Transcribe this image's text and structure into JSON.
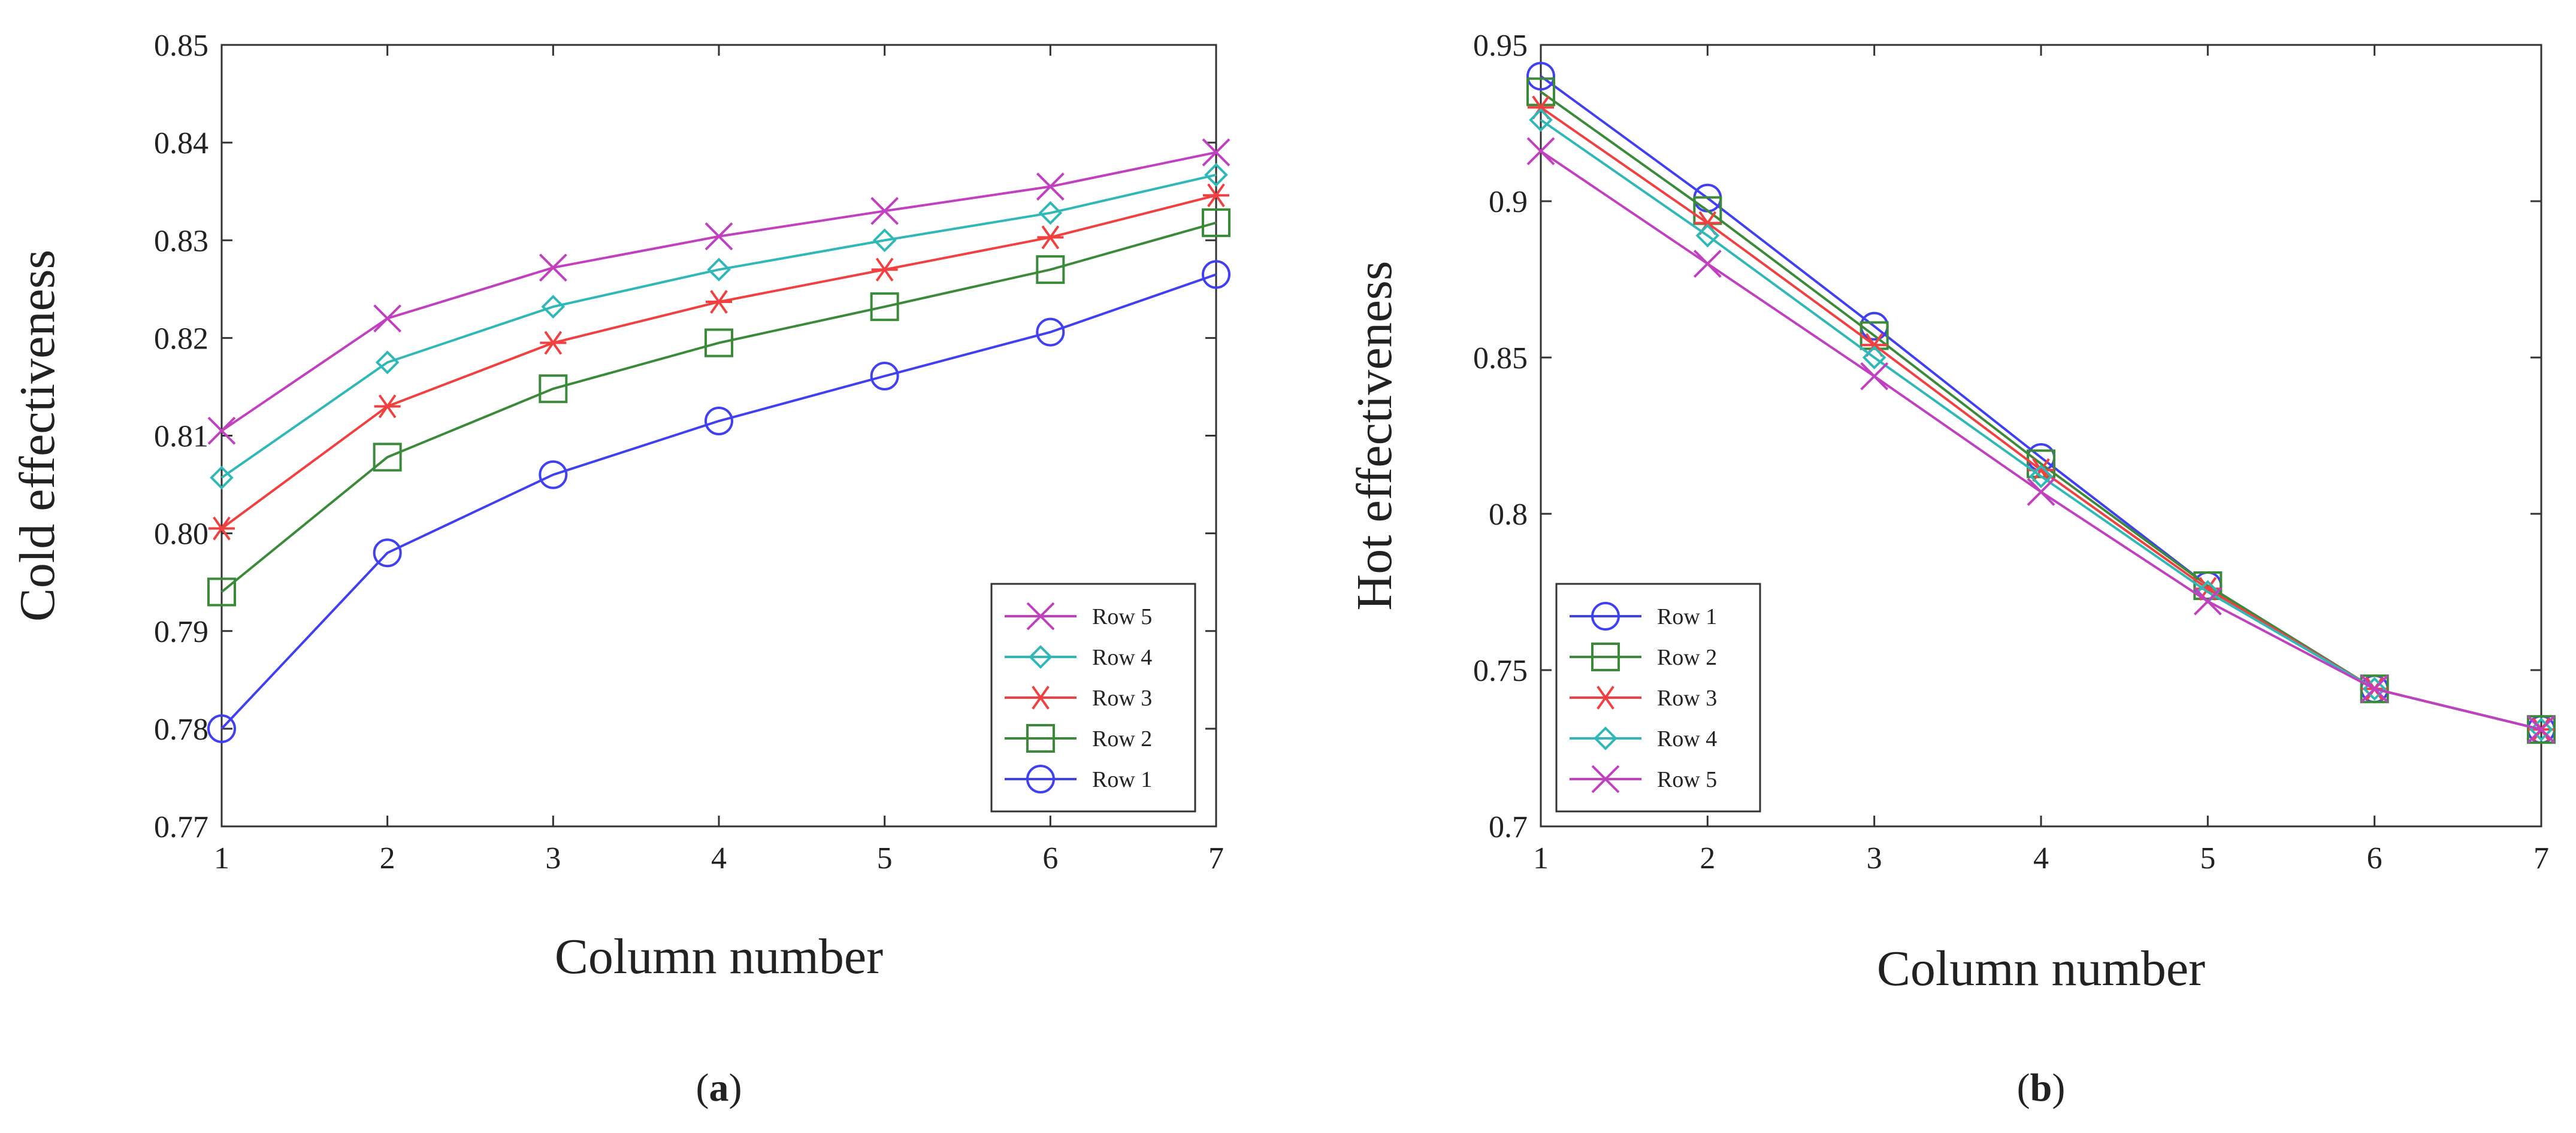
{
  "chart_data": [
    {
      "type": "line",
      "panel_label_open": "(",
      "panel_label": "a",
      "panel_label_close": ")",
      "title": "",
      "xlabel": "Column number",
      "ylabel": "Cold effectiveness",
      "xlim": [
        1,
        7
      ],
      "ylim": [
        0.77,
        0.85
      ],
      "xticks": [
        1,
        2,
        3,
        4,
        5,
        6,
        7
      ],
      "yticks": [
        0.77,
        0.78,
        0.79,
        0.8,
        0.81,
        0.82,
        0.83,
        0.84,
        0.85
      ],
      "ytick_labels": [
        "0.77",
        "0.78",
        "0.79",
        "0.80",
        "0.81",
        "0.82",
        "0.83",
        "0.84",
        "0.85"
      ],
      "grid": false,
      "legend_position": "bottom-right",
      "x": [
        1,
        2,
        3,
        4,
        5,
        6,
        7
      ],
      "series": [
        {
          "name": "Row 5",
          "color": "#c040c0",
          "marker": "x",
          "values": [
            0.8105,
            0.822,
            0.8272,
            0.8304,
            0.833,
            0.8355,
            0.839
          ]
        },
        {
          "name": "Row 4",
          "color": "#30b8b8",
          "marker": "diamond",
          "values": [
            0.8057,
            0.8175,
            0.8232,
            0.827,
            0.83,
            0.8328,
            0.8367
          ]
        },
        {
          "name": "Row 3",
          "color": "#f04040",
          "marker": "asterisk",
          "values": [
            0.8005,
            0.813,
            0.8195,
            0.8237,
            0.827,
            0.8303,
            0.8346
          ]
        },
        {
          "name": "Row 2",
          "color": "#3a8a3a",
          "marker": "square",
          "values": [
            0.794,
            0.8078,
            0.8148,
            0.8195,
            0.8232,
            0.827,
            0.8318
          ]
        },
        {
          "name": "Row 1",
          "color": "#4040f0",
          "marker": "circle",
          "values": [
            0.78,
            0.798,
            0.806,
            0.8115,
            0.8161,
            0.8206,
            0.8265
          ]
        }
      ]
    },
    {
      "type": "line",
      "panel_label_open": "(",
      "panel_label": "b",
      "panel_label_close": ")",
      "title": "",
      "xlabel": "Column number",
      "ylabel": "Hot effectiveness",
      "xlim": [
        1,
        7
      ],
      "ylim": [
        0.7,
        0.95
      ],
      "xticks": [
        1,
        2,
        3,
        4,
        5,
        6,
        7
      ],
      "yticks": [
        0.7,
        0.75,
        0.8,
        0.85,
        0.9,
        0.95
      ],
      "ytick_labels": [
        "0.7",
        "0.75",
        "0.8",
        "0.85",
        "0.9",
        "0.95"
      ],
      "grid": false,
      "legend_position": "bottom-left",
      "x": [
        1,
        2,
        3,
        4,
        5,
        6,
        7
      ],
      "series": [
        {
          "name": "Row 1",
          "color": "#4040f0",
          "marker": "circle",
          "values": [
            0.94,
            0.901,
            0.86,
            0.818,
            0.777,
            0.744,
            0.731
          ]
        },
        {
          "name": "Row 2",
          "color": "#3a8a3a",
          "marker": "square",
          "values": [
            0.935,
            0.897,
            0.857,
            0.816,
            0.777,
            0.744,
            0.731
          ]
        },
        {
          "name": "Row 3",
          "color": "#f04040",
          "marker": "asterisk",
          "values": [
            0.93,
            0.893,
            0.854,
            0.814,
            0.776,
            0.744,
            0.731
          ]
        },
        {
          "name": "Row 4",
          "color": "#30b8b8",
          "marker": "diamond",
          "values": [
            0.926,
            0.889,
            0.85,
            0.812,
            0.775,
            0.744,
            0.731
          ]
        },
        {
          "name": "Row 5",
          "color": "#c040c0",
          "marker": "x",
          "values": [
            0.916,
            0.88,
            0.844,
            0.807,
            0.772,
            0.744,
            0.731
          ]
        }
      ]
    }
  ]
}
